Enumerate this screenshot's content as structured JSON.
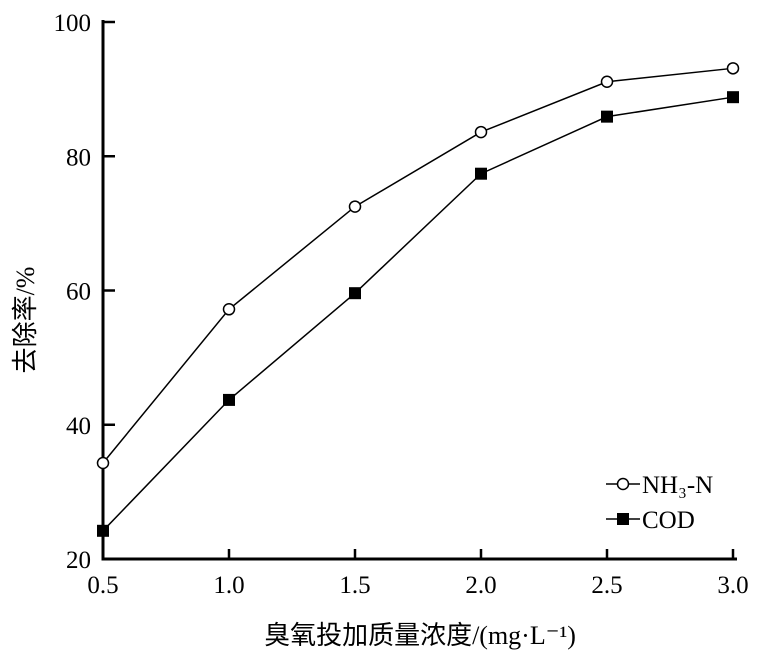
{
  "chart_data": {
    "type": "line",
    "title": "",
    "xlabel": "臭氧投加质量浓度/(mg·L⁻¹)",
    "ylabel": "去除率/%",
    "xlim": [
      0.5,
      3.0
    ],
    "ylim": [
      20,
      100
    ],
    "x_ticks": [
      "0.5",
      "1.0",
      "1.5",
      "2.0",
      "2.5",
      "3.0"
    ],
    "y_ticks": [
      "20",
      "40",
      "60",
      "80",
      "100"
    ],
    "grid": false,
    "legend_position": "bottom-right",
    "x": [
      0.5,
      1.0,
      1.5,
      2.0,
      2.5,
      3.0
    ],
    "series": [
      {
        "name": "NH₃-N",
        "marker": "open-circle",
        "values": [
          34.3,
          57.2,
          72.5,
          83.6,
          91.1,
          93.1
        ]
      },
      {
        "name": "COD",
        "marker": "filled-square",
        "values": [
          24.2,
          43.7,
          59.6,
          77.4,
          85.9,
          88.8
        ]
      }
    ]
  }
}
